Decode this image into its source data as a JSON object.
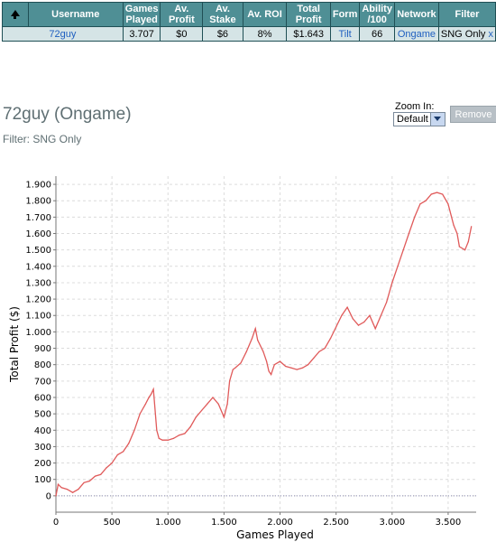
{
  "table": {
    "headers": [
      "",
      "Username",
      "Games Played",
      "Av. Profit",
      "Av. Stake",
      "Av. ROI",
      "Total Profit",
      "Form",
      "Ability /100",
      "Network",
      "Filter"
    ],
    "row": {
      "username": "72guy",
      "games_played": "3.707",
      "av_profit": "$0",
      "av_stake": "$6",
      "av_roi": "8%",
      "total_profit": "$1.643",
      "form": "Tilt",
      "ability": "66",
      "network": "Ongame",
      "filter": "SNG Only",
      "more": "x"
    }
  },
  "player": {
    "title": "72guy (Ongame)",
    "filter": "Filter: SNG Only"
  },
  "zoom": {
    "label": "Zoom In:",
    "selected": "Default",
    "remove_label": "Remove"
  },
  "colors": {
    "header_bg": "#4f8f95",
    "row_bg": "#d5e4e6",
    "line": "#e05a5a",
    "link": "#1f5fc0"
  },
  "icons": {
    "sort": "sort-up-arrow-icon",
    "zoom_dropdown": "chevron-down-icon"
  },
  "chart_data": {
    "type": "line",
    "title": "",
    "xlabel": "Games Played",
    "ylabel": "Total Profit ($)",
    "xlim": [
      0,
      3750
    ],
    "ylim": [
      -100,
      1950
    ],
    "x_ticks": [
      0,
      500,
      1000,
      1500,
      2000,
      2500,
      3000,
      3500
    ],
    "x_tick_labels": [
      "0",
      "500",
      "1.000",
      "1.500",
      "2.000",
      "2.500",
      "3.000",
      "3.500"
    ],
    "y_ticks": [
      0,
      100,
      200,
      300,
      400,
      500,
      600,
      700,
      800,
      900,
      1000,
      1100,
      1200,
      1300,
      1400,
      1500,
      1600,
      1700,
      1800,
      1900
    ],
    "y_tick_labels": [
      "0",
      "100",
      "200",
      "300",
      "400",
      "500",
      "600",
      "700",
      "800",
      "900",
      "1.000",
      "1.100",
      "1.200",
      "1.300",
      "1.400",
      "1.500",
      "1.600",
      "1.700",
      "1.800",
      "1.900"
    ],
    "grid": true,
    "zero_line": true,
    "series": [
      {
        "x": [
          0,
          20,
          50,
          100,
          150,
          200,
          250,
          300,
          350,
          400,
          450,
          500,
          550,
          600,
          650,
          700,
          750,
          800,
          830,
          850,
          870,
          900,
          920,
          950,
          1000,
          1050,
          1100,
          1150,
          1200,
          1250,
          1300,
          1350,
          1400,
          1450,
          1500,
          1530,
          1550,
          1580,
          1600,
          1650,
          1700,
          1750,
          1780,
          1800,
          1850,
          1880,
          1900,
          1920,
          1950,
          2000,
          2050,
          2100,
          2150,
          2200,
          2250,
          2300,
          2350,
          2400,
          2450,
          2500,
          2550,
          2600,
          2650,
          2700,
          2750,
          2800,
          2850,
          2900,
          2950,
          3000,
          3050,
          3100,
          3150,
          3200,
          3250,
          3300,
          3350,
          3400,
          3450,
          3500,
          3550,
          3580,
          3600,
          3650,
          3680,
          3707
        ],
        "y": [
          0,
          70,
          50,
          40,
          20,
          40,
          80,
          90,
          120,
          130,
          170,
          200,
          250,
          270,
          320,
          400,
          500,
          560,
          600,
          620,
          650,
          400,
          350,
          340,
          340,
          350,
          370,
          380,
          420,
          480,
          520,
          560,
          600,
          560,
          480,
          560,
          700,
          770,
          780,
          810,
          880,
          960,
          1020,
          950,
          880,
          820,
          760,
          740,
          800,
          820,
          790,
          780,
          770,
          780,
          800,
          840,
          880,
          900,
          960,
          1030,
          1100,
          1150,
          1080,
          1040,
          1060,
          1100,
          1020,
          1100,
          1180,
          1300,
          1400,
          1500,
          1600,
          1700,
          1780,
          1800,
          1840,
          1850,
          1840,
          1780,
          1650,
          1600,
          1520,
          1500,
          1550,
          1643
        ]
      }
    ]
  }
}
